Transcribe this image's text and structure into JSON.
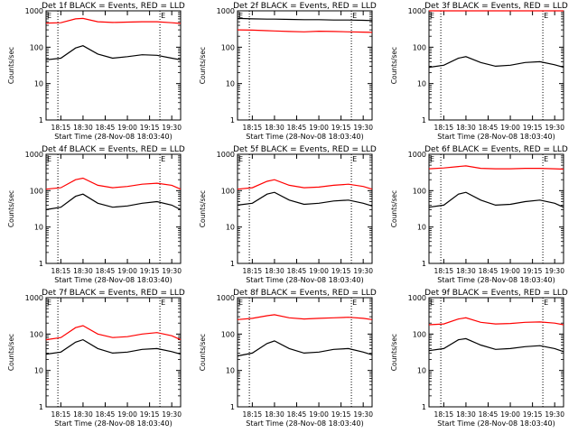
{
  "figure": {
    "ylabel": "Counts/sec",
    "xlabel": "Start Time (28-Nov-08 18:03:40)",
    "corner_left": "E",
    "corner_right": "E"
  },
  "chart_data": [
    {
      "type": "line",
      "title": "Det 1f BLACK = Events, RED = LLD",
      "xlabel": "Start Time (28-Nov-08 18:03:40)",
      "ylabel": "Counts/sec",
      "yscale": "log",
      "ylim": [
        1,
        1000
      ],
      "yticks": [
        "1",
        "10",
        "100",
        "1000"
      ],
      "xlim": [
        "18:05",
        "19:36"
      ],
      "xticks": [
        "18:15",
        "18:30",
        "18:45",
        "19:00",
        "19:15",
        "19:30"
      ],
      "vlines": [
        "18:13",
        "19:22"
      ],
      "x": [
        "18:05",
        "18:15",
        "18:25",
        "18:30",
        "18:40",
        "18:50",
        "19:00",
        "19:10",
        "19:20",
        "19:30",
        "19:36"
      ],
      "series": [
        {
          "name": "Events",
          "color": "#000000",
          "values": [
            45,
            50,
            95,
            110,
            65,
            50,
            55,
            62,
            60,
            50,
            45
          ]
        },
        {
          "name": "LLD",
          "color": "#ff0000",
          "values": [
            460,
            470,
            600,
            620,
            500,
            480,
            490,
            500,
            500,
            470,
            450
          ]
        }
      ]
    },
    {
      "type": "line",
      "title": "Det 2f BLACK = Events, RED = LLD",
      "xlabel": "Start Time (28-Nov-08 18:03:40)",
      "ylabel": "Counts/sec",
      "yscale": "log",
      "ylim": [
        1,
        1000
      ],
      "yticks": [
        "1",
        "10",
        "100",
        "1000"
      ],
      "xlim": [
        "18:05",
        "19:36"
      ],
      "xticks": [
        "18:15",
        "18:30",
        "18:45",
        "19:00",
        "19:15",
        "19:30"
      ],
      "vlines": [
        "18:13",
        "19:22"
      ],
      "x": [
        "18:05",
        "18:15",
        "18:25",
        "18:30",
        "18:40",
        "18:50",
        "19:00",
        "19:10",
        "19:20",
        "19:30",
        "19:36"
      ],
      "series": [
        {
          "name": "Events",
          "color": "#000000",
          "values": [
            620,
            600,
            590,
            590,
            580,
            570,
            570,
            560,
            560,
            550,
            540
          ]
        },
        {
          "name": "LLD",
          "color": "#ff0000",
          "values": [
            300,
            295,
            285,
            280,
            270,
            265,
            275,
            270,
            265,
            260,
            255
          ]
        }
      ]
    },
    {
      "type": "line",
      "title": "Det 3f BLACK = Events, RED = LLD",
      "xlabel": "Start Time (28-Nov-08 18:03:40)",
      "ylabel": "Counts/sec",
      "yscale": "log",
      "ylim": [
        1,
        1000
      ],
      "yticks": [
        "1",
        "10",
        "100",
        "1000"
      ],
      "xlim": [
        "18:05",
        "19:36"
      ],
      "xticks": [
        "18:15",
        "18:30",
        "18:45",
        "19:00",
        "19:15",
        "19:30"
      ],
      "vlines": [
        "18:13",
        "19:22"
      ],
      "x": [
        "18:05",
        "18:15",
        "18:25",
        "18:30",
        "18:40",
        "18:50",
        "19:00",
        "19:10",
        "19:20",
        "19:30",
        "19:36"
      ],
      "series": [
        {
          "name": "Events",
          "color": "#000000",
          "values": [
            28,
            32,
            50,
            55,
            38,
            30,
            32,
            38,
            40,
            33,
            28
          ]
        },
        {
          "name": "LLD",
          "color": "#ff0000",
          "values": [
            1000,
            1000,
            1000,
            1000,
            1000,
            1000,
            1000,
            1000,
            1000,
            1000,
            1000
          ]
        }
      ]
    },
    {
      "type": "line",
      "title": "Det 4f BLACK = Events, RED = LLD",
      "xlabel": "Start Time (28-Nov-08 18:03:40)",
      "ylabel": "Counts/sec",
      "yscale": "log",
      "ylim": [
        1,
        1000
      ],
      "yticks": [
        "1",
        "10",
        "100",
        "1000"
      ],
      "xlim": [
        "18:05",
        "19:36"
      ],
      "xticks": [
        "18:15",
        "18:30",
        "18:45",
        "19:00",
        "19:15",
        "19:30"
      ],
      "vlines": [
        "18:13",
        "19:22"
      ],
      "x": [
        "18:05",
        "18:15",
        "18:25",
        "18:30",
        "18:40",
        "18:50",
        "19:00",
        "19:10",
        "19:20",
        "19:30",
        "19:36"
      ],
      "series": [
        {
          "name": "Events",
          "color": "#000000",
          "values": [
            30,
            35,
            70,
            80,
            45,
            35,
            38,
            45,
            50,
            40,
            30
          ]
        },
        {
          "name": "LLD",
          "color": "#ff0000",
          "values": [
            110,
            120,
            200,
            220,
            140,
            120,
            130,
            150,
            160,
            140,
            110
          ]
        }
      ]
    },
    {
      "type": "line",
      "title": "Det 5f BLACK = Events, RED = LLD",
      "xlabel": "Start Time (28-Nov-08 18:03:40)",
      "ylabel": "Counts/sec",
      "yscale": "log",
      "ylim": [
        1,
        1000
      ],
      "yticks": [
        "1",
        "10",
        "100",
        "1000"
      ],
      "xlim": [
        "18:05",
        "19:36"
      ],
      "xticks": [
        "18:15",
        "18:30",
        "18:45",
        "19:00",
        "19:15",
        "19:30"
      ],
      "vlines": [
        "18:13",
        "19:22"
      ],
      "x": [
        "18:05",
        "18:15",
        "18:25",
        "18:30",
        "18:40",
        "18:50",
        "19:00",
        "19:10",
        "19:20",
        "19:30",
        "19:36"
      ],
      "series": [
        {
          "name": "Events",
          "color": "#000000",
          "values": [
            40,
            45,
            80,
            90,
            55,
            42,
            45,
            52,
            55,
            45,
            38
          ]
        },
        {
          "name": "LLD",
          "color": "#ff0000",
          "values": [
            110,
            120,
            180,
            200,
            140,
            120,
            125,
            140,
            150,
            130,
            110
          ]
        }
      ]
    },
    {
      "type": "line",
      "title": "Det 6f BLACK = Events, RED = LLD",
      "xlabel": "Start Time (28-Nov-08 18:03:40)",
      "ylabel": "Counts/sec",
      "yscale": "log",
      "ylim": [
        1,
        1000
      ],
      "yticks": [
        "1",
        "10",
        "100",
        "1000"
      ],
      "xlim": [
        "18:05",
        "19:36"
      ],
      "xticks": [
        "18:15",
        "18:30",
        "18:45",
        "19:00",
        "19:15",
        "19:30"
      ],
      "vlines": [
        "18:13",
        "19:22"
      ],
      "x": [
        "18:05",
        "18:15",
        "18:25",
        "18:30",
        "18:40",
        "18:50",
        "19:00",
        "19:10",
        "19:20",
        "19:30",
        "19:36"
      ],
      "series": [
        {
          "name": "Events",
          "color": "#000000",
          "values": [
            35,
            40,
            80,
            90,
            55,
            40,
            42,
            50,
            55,
            45,
            35
          ]
        },
        {
          "name": "LLD",
          "color": "#ff0000",
          "values": [
            400,
            420,
            460,
            480,
            410,
            400,
            400,
            410,
            410,
            400,
            390
          ]
        }
      ]
    },
    {
      "type": "line",
      "title": "Det 7f BLACK = Events, RED = LLD",
      "xlabel": "Start Time (28-Nov-08 18:03:40)",
      "ylabel": "Counts/sec",
      "yscale": "log",
      "ylim": [
        1,
        1000
      ],
      "yticks": [
        "1",
        "10",
        "100",
        "1000"
      ],
      "xlim": [
        "18:05",
        "19:36"
      ],
      "xticks": [
        "18:15",
        "18:30",
        "18:45",
        "19:00",
        "19:15",
        "19:30"
      ],
      "vlines": [
        "18:13",
        "19:22"
      ],
      "x": [
        "18:05",
        "18:15",
        "18:25",
        "18:30",
        "18:40",
        "18:50",
        "19:00",
        "19:10",
        "19:20",
        "19:30",
        "19:36"
      ],
      "series": [
        {
          "name": "Events",
          "color": "#000000",
          "values": [
            28,
            32,
            60,
            70,
            40,
            30,
            32,
            38,
            40,
            33,
            28
          ]
        },
        {
          "name": "LLD",
          "color": "#ff0000",
          "values": [
            70,
            80,
            150,
            170,
            100,
            80,
            85,
            100,
            110,
            90,
            70
          ]
        }
      ]
    },
    {
      "type": "line",
      "title": "Det 8f BLACK = Events, RED = LLD",
      "xlabel": "Start Time (28-Nov-08 18:03:40)",
      "ylabel": "Counts/sec",
      "yscale": "log",
      "ylim": [
        1,
        1000
      ],
      "yticks": [
        "1",
        "10",
        "100",
        "1000"
      ],
      "xlim": [
        "18:05",
        "19:36"
      ],
      "xticks": [
        "18:15",
        "18:30",
        "18:45",
        "19:00",
        "19:15",
        "19:30"
      ],
      "vlines": [
        "18:13",
        "19:22"
      ],
      "x": [
        "18:05",
        "18:15",
        "18:25",
        "18:30",
        "18:40",
        "18:50",
        "19:00",
        "19:10",
        "19:20",
        "19:30",
        "19:36"
      ],
      "series": [
        {
          "name": "Events",
          "color": "#000000",
          "values": [
            25,
            30,
            55,
            65,
            40,
            30,
            32,
            38,
            40,
            32,
            27
          ]
        },
        {
          "name": "LLD",
          "color": "#ff0000",
          "values": [
            250,
            270,
            320,
            340,
            280,
            260,
            270,
            280,
            290,
            270,
            250
          ]
        }
      ]
    },
    {
      "type": "line",
      "title": "Det 9f BLACK = Events, RED = LLD",
      "xlabel": "Start Time (28-Nov-08 18:03:40)",
      "ylabel": "Counts/sec",
      "yscale": "log",
      "ylim": [
        1,
        1000
      ],
      "yticks": [
        "1",
        "10",
        "100",
        "1000"
      ],
      "xlim": [
        "18:05",
        "19:36"
      ],
      "xticks": [
        "18:15",
        "18:30",
        "18:45",
        "19:00",
        "19:15",
        "19:30"
      ],
      "vlines": [
        "18:13",
        "19:22"
      ],
      "x": [
        "18:05",
        "18:15",
        "18:25",
        "18:30",
        "18:40",
        "18:50",
        "19:00",
        "19:10",
        "19:20",
        "19:30",
        "19:36"
      ],
      "series": [
        {
          "name": "Events",
          "color": "#000000",
          "values": [
            35,
            40,
            70,
            75,
            50,
            38,
            40,
            45,
            48,
            40,
            33
          ]
        },
        {
          "name": "LLD",
          "color": "#ff0000",
          "values": [
            180,
            190,
            260,
            280,
            210,
            190,
            195,
            210,
            215,
            200,
            180
          ]
        }
      ]
    }
  ]
}
